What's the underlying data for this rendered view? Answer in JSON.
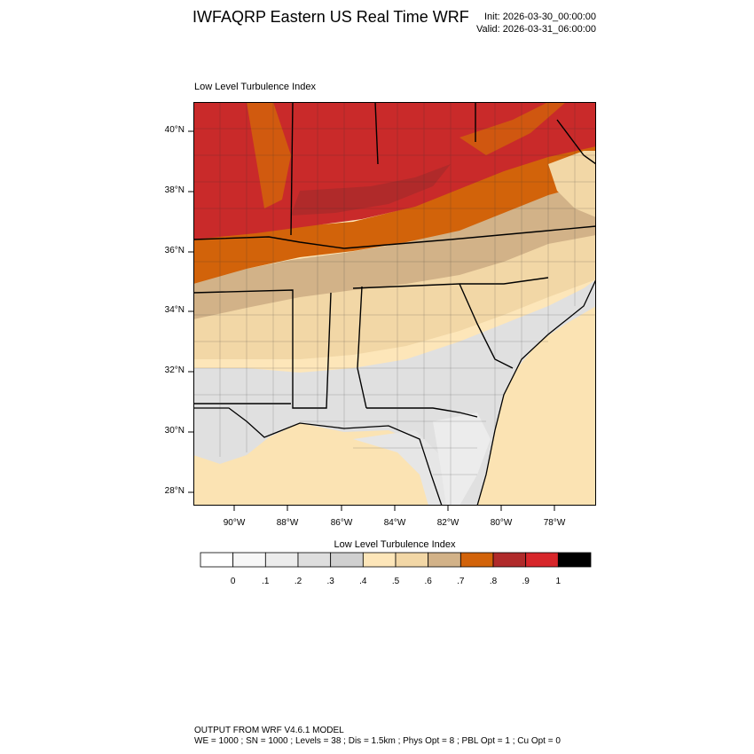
{
  "header": {
    "title": "IWFAQRP Eastern US Real Time WRF",
    "init": "Init: 2026-03-30_00:00:00",
    "valid": "Valid: 2026-03-31_06:00:00"
  },
  "plot": {
    "title": "Low Level Turbulence Index",
    "lat_labels": [
      "40°N",
      "38°N",
      "36°N",
      "34°N",
      "32°N",
      "30°N",
      "28°N"
    ],
    "lon_labels": [
      "90°W",
      "88°W",
      "86°W",
      "84°W",
      "82°W",
      "80°W",
      "78°W"
    ]
  },
  "colorbar": {
    "title": "Low Level Turbulence Index",
    "labels": [
      "0",
      ".1",
      ".2",
      ".3",
      ".4",
      ".5",
      ".6",
      ".7",
      ".8",
      ".9",
      "1"
    ],
    "colors": [
      "#ffffff",
      "#f7f7f7",
      "#ececec",
      "#dedede",
      "#d0d0d0",
      "#fde6b9",
      "#f2d7a6",
      "#d2b288",
      "#d2630a",
      "#b02a2a",
      "#d7262a",
      "#000000"
    ]
  },
  "map_colors": {
    "land_light": "#fde6b9",
    "ocean": "#fbe3b3",
    "gray_light": "#e9e9e9",
    "gray_mid": "#d9d9d9",
    "tan": "#d2b288",
    "orange": "#d2630a",
    "red": "#c92a2a",
    "red_dark": "#b02a2a"
  },
  "footer": {
    "line1": "OUTPUT FROM WRF V4.6.1 MODEL",
    "line2": "WE = 1000 ; SN = 1000 ; Levels = 38 ; Dis = 1.5km ; Phys Opt = 8 ; PBL Opt = 1 ; Cu Opt = 0"
  }
}
